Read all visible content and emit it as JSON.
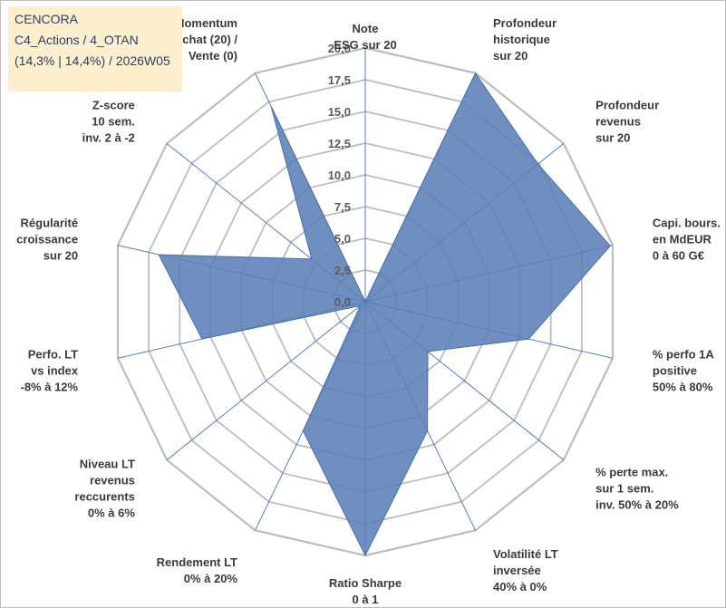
{
  "info": {
    "line1": "CENCORA",
    "line2": "C4_Actions / 4_OTAN",
    "line3": "(14,3% | 14,4%) / 2026W05"
  },
  "colors": {
    "fill": "#5b80b7",
    "stroke": "#4a6ea8",
    "grid": "#bcbcbc",
    "axis": "#4472c4",
    "label": "#3a3a3a",
    "tick": "#5a5a5a",
    "info_bg": "#fcefcd"
  },
  "chart_data": {
    "type": "radar",
    "title": "",
    "rmin": 0,
    "rmax": 20,
    "grid_step": 2.5,
    "tick_labels": [
      "0,0",
      "2,5",
      "5,0",
      "7,5",
      "10,0",
      "12,5",
      "15,0",
      "17,5",
      "20,0"
    ],
    "axes": [
      {
        "name": "Note ESG sur 20",
        "lines": [
          "Note",
          "ESG sur 20"
        ],
        "value": 0
      },
      {
        "name": "Profondeur historique sur 20",
        "lines": [
          "Profondeur",
          "historique",
          "sur 20"
        ],
        "value": 20
      },
      {
        "name": "Profondeur revenus sur 20",
        "lines": [
          "Profondeur",
          "revenus",
          "sur 20"
        ],
        "value": 17.4
      },
      {
        "name": "Capi. bours. en MdEUR 0 à 60 G€",
        "lines": [
          "Capi. bours.",
          "en MdEUR",
          "0 à 60 G€"
        ],
        "value": 19.8
      },
      {
        "name": "% perfo 1A positive 50% à 80%",
        "lines": [
          "% perfo 1A",
          "positive",
          "50% à 80%"
        ],
        "value": 13.2
      },
      {
        "name": "% perte max. sur 1 sem. inv. 50% à 20%",
        "lines": [
          "% perte max.",
          "sur 1 sem.",
          "inv. 50% à 20%"
        ],
        "value": 6.3
      },
      {
        "name": "Volatilité LT inversée 40% à 0%",
        "lines": [
          "Volatilité LT",
          "inversée",
          "40% à 0%"
        ],
        "value": 11.3
      },
      {
        "name": "Ratio Sharpe 0 à 1",
        "lines": [
          "Ratio Sharpe",
          "0 à 1"
        ],
        "value": 20
      },
      {
        "name": "Rendement LT 0% à 20%",
        "lines": [
          "Rendement LT",
          "0% à 20%"
        ],
        "value": 11.3
      },
      {
        "name": "Niveau LT revenus reccurents 0% à 6%",
        "lines": [
          "Niveau LT",
          "revenus",
          "reccurents",
          "0% à 6%"
        ],
        "value": 0.5
      },
      {
        "name": "Perfo. LT vs index -8% à 12%",
        "lines": [
          "Perfo. LT",
          "vs index",
          "-8% à 12%"
        ],
        "value": 13.2
      },
      {
        "name": "Régularité croissance sur 20",
        "lines": [
          "Régularité",
          "croissance",
          "sur 20"
        ],
        "value": 16.7
      },
      {
        "name": "Z-score 10 sem. inv. 2 à -2",
        "lines": [
          "Z-score",
          "10 sem.",
          "inv. 2 à -2"
        ],
        "value": 5.4
      },
      {
        "name": "Momentum Achat (20) / Vente (0)",
        "lines": [
          "Momentum",
          "Achat (20) /",
          "Vente (0)"
        ],
        "value": 17.1
      }
    ]
  }
}
